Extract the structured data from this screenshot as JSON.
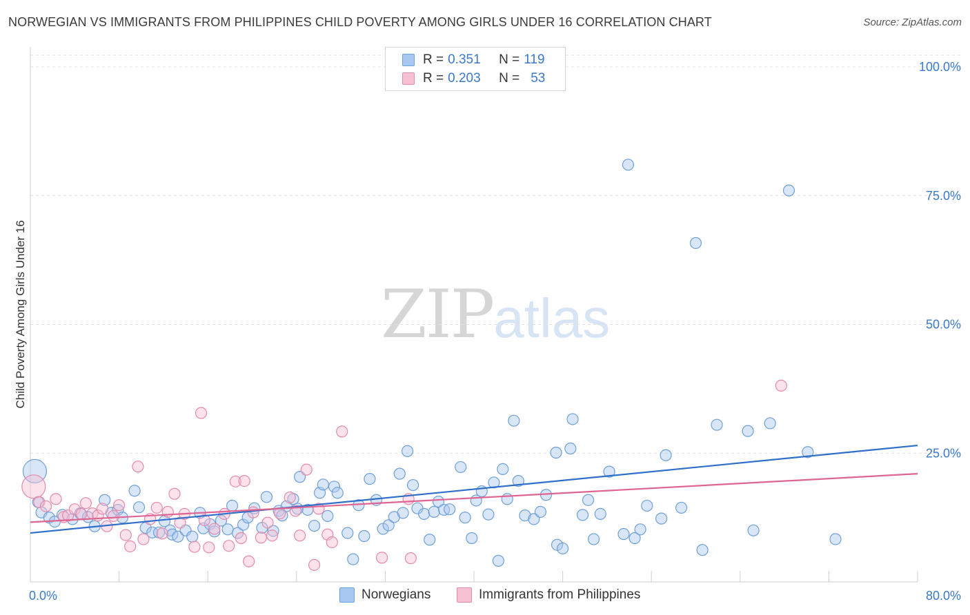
{
  "title": "NORWEGIAN VS IMMIGRANTS FROM PHILIPPINES CHILD POVERTY AMONG GIRLS UNDER 16 CORRELATION CHART",
  "source": "Source: ZipAtlas.com",
  "watermark": {
    "zip": "ZIP",
    "atlas": "atlas"
  },
  "legend_stats": [
    {
      "r_label": "R =",
      "r_value": "0.351",
      "n_label": "N =",
      "n_value": "119",
      "color": "#a9c8f0",
      "border": "#6f9fd8"
    },
    {
      "r_label": "R =",
      "r_value": "0.203",
      "n_label": "N =",
      "n_value": "53",
      "color": "#f7bfd2",
      "border": "#e58aaa"
    }
  ],
  "chart_data": {
    "type": "scatter",
    "title": "NORWEGIAN VS IMMIGRANTS FROM PHILIPPINES CHILD POVERTY AMONG GIRLS UNDER 16 CORRELATION CHART",
    "xlabel": "",
    "ylabel": "Child Poverty Among Girls Under 16",
    "xlim": [
      0,
      80
    ],
    "ylim": [
      0,
      100
    ],
    "x_tick_labels": [
      "0.0%",
      "80.0%"
    ],
    "y_ticks": [
      25,
      50,
      75,
      100
    ],
    "y_tick_labels": [
      "25.0%",
      "50.0%",
      "75.0%",
      "100.0%"
    ],
    "grid": "horizontal dashed",
    "legend_position": "bottom-center",
    "series": [
      {
        "name": "Norwegians",
        "color": "#6f9fd8",
        "fill": "#a9c8f0",
        "trend": {
          "x": [
            0,
            80
          ],
          "y": [
            9.5,
            26.5
          ],
          "color": "#2d6fcb"
        },
        "points": [
          [
            0.4,
            21.5
          ],
          [
            0.7,
            15.5
          ],
          [
            1.0,
            13.5
          ],
          [
            1.7,
            12.5
          ],
          [
            2.2,
            11.7
          ],
          [
            2.9,
            13
          ],
          [
            3.8,
            12.2
          ],
          [
            4.5,
            13.3
          ],
          [
            5.2,
            12.6
          ],
          [
            5.8,
            10.8
          ],
          [
            6.7,
            15.9
          ],
          [
            7.3,
            13.4
          ],
          [
            7.9,
            14
          ],
          [
            8.3,
            12.5
          ],
          [
            9.4,
            17.7
          ],
          [
            9.8,
            14.5
          ],
          [
            10.4,
            10.5
          ],
          [
            11.0,
            9.6
          ],
          [
            11.6,
            9.6
          ],
          [
            12.1,
            11.8
          ],
          [
            12.6,
            10
          ],
          [
            12.8,
            9.2
          ],
          [
            13.3,
            8.8
          ],
          [
            14.0,
            10
          ],
          [
            14.6,
            8.8
          ],
          [
            15.3,
            13.4
          ],
          [
            15.6,
            10.4
          ],
          [
            16.2,
            11.2
          ],
          [
            16.6,
            9.8
          ],
          [
            17.2,
            11.9
          ],
          [
            17.8,
            10.2
          ],
          [
            18.2,
            14.8
          ],
          [
            18.7,
            9.5
          ],
          [
            19.2,
            11.1
          ],
          [
            19.6,
            12.5
          ],
          [
            20.2,
            14.3
          ],
          [
            20.9,
            10.5
          ],
          [
            21.3,
            16.5
          ],
          [
            21.9,
            9.9
          ],
          [
            22.4,
            13.8
          ],
          [
            22.7,
            12.9
          ],
          [
            23.1,
            14.7
          ],
          [
            23.7,
            16.1
          ],
          [
            24.1,
            14.2
          ],
          [
            24.3,
            20.4
          ],
          [
            25.0,
            14
          ],
          [
            25.6,
            10.9
          ],
          [
            26.1,
            17.3
          ],
          [
            26.4,
            18.9
          ],
          [
            26.8,
            12.8
          ],
          [
            27.4,
            18.5
          ],
          [
            27.7,
            17.3
          ],
          [
            28.6,
            9.5
          ],
          [
            29.1,
            4.4
          ],
          [
            29.6,
            14.9
          ],
          [
            30.1,
            8.9
          ],
          [
            30.6,
            20
          ],
          [
            31.2,
            15.9
          ],
          [
            31.8,
            10.3
          ],
          [
            32.3,
            11
          ],
          [
            32.8,
            12.6
          ],
          [
            33.3,
            21
          ],
          [
            33.6,
            13.4
          ],
          [
            34.0,
            25.4
          ],
          [
            34.5,
            18.8
          ],
          [
            34.9,
            14.3
          ],
          [
            35.5,
            13.2
          ],
          [
            36.0,
            8.2
          ],
          [
            36.4,
            13.6
          ],
          [
            36.8,
            15.6
          ],
          [
            37.3,
            14
          ],
          [
            37.8,
            14.1
          ],
          [
            38.8,
            22.3
          ],
          [
            39.2,
            12.5
          ],
          [
            39.8,
            8.5
          ],
          [
            40.2,
            15.8
          ],
          [
            40.7,
            17.6
          ],
          [
            41.3,
            13.1
          ],
          [
            41.8,
            19.3
          ],
          [
            42.2,
            4.1
          ],
          [
            42.6,
            21.9
          ],
          [
            43.0,
            16.1
          ],
          [
            43.6,
            31.3
          ],
          [
            44.0,
            19.6
          ],
          [
            44.6,
            12.9
          ],
          [
            45.4,
            12.2
          ],
          [
            46.0,
            13.6
          ],
          [
            46.5,
            16.9
          ],
          [
            47.4,
            25.1
          ],
          [
            47.5,
            7.2
          ],
          [
            48.0,
            6.5
          ],
          [
            48.7,
            25.9
          ],
          [
            48.9,
            31.6
          ],
          [
            49.8,
            13
          ],
          [
            50.3,
            15.9
          ],
          [
            50.8,
            8.3
          ],
          [
            51.4,
            13.2
          ],
          [
            52.2,
            21.4
          ],
          [
            53.5,
            9.3
          ],
          [
            53.9,
            81
          ],
          [
            54.5,
            8.5
          ],
          [
            55.0,
            10.2
          ],
          [
            55.6,
            14.8
          ],
          [
            56.9,
            12.3
          ],
          [
            57.3,
            24.6
          ],
          [
            58.7,
            14.4
          ],
          [
            60.0,
            65.8
          ],
          [
            60.6,
            6.2
          ],
          [
            61.9,
            30.5
          ],
          [
            64.7,
            29.3
          ],
          [
            65.2,
            10
          ],
          [
            66.7,
            30.8
          ],
          [
            68.4,
            76
          ],
          [
            70.1,
            25.2
          ],
          [
            72.6,
            8.3
          ]
        ]
      },
      {
        "name": "Immigrants from Philippines",
        "color": "#e58aaa",
        "fill": "#f7bfd2",
        "trend": {
          "x": [
            0,
            80
          ],
          "y": [
            11.6,
            21
          ],
          "color": "#e06492"
        },
        "points": [
          [
            0.3,
            18.5
          ],
          [
            0.8,
            15.5
          ],
          [
            1.4,
            14.7
          ],
          [
            2.3,
            16.1
          ],
          [
            3.0,
            12.6
          ],
          [
            3.4,
            12.9
          ],
          [
            4.0,
            14.1
          ],
          [
            4.6,
            13.2
          ],
          [
            5.0,
            15.3
          ],
          [
            5.6,
            13.3
          ],
          [
            6.1,
            12.9
          ],
          [
            6.5,
            14.2
          ],
          [
            6.9,
            10.8
          ],
          [
            7.5,
            12.8
          ],
          [
            8.0,
            14.9
          ],
          [
            8.6,
            9.1
          ],
          [
            9.0,
            6.9
          ],
          [
            9.7,
            22.4
          ],
          [
            10.2,
            8.3
          ],
          [
            10.8,
            12.2
          ],
          [
            11.4,
            14.4
          ],
          [
            11.9,
            9.4
          ],
          [
            12.4,
            13.6
          ],
          [
            13.0,
            17.1
          ],
          [
            13.5,
            11.5
          ],
          [
            13.9,
            13.2
          ],
          [
            14.8,
            6.8
          ],
          [
            15.4,
            32.8
          ],
          [
            15.7,
            12
          ],
          [
            16.1,
            6.7
          ],
          [
            16.6,
            10.3
          ],
          [
            17.5,
            13.2
          ],
          [
            17.9,
            7
          ],
          [
            18.5,
            19.5
          ],
          [
            19.0,
            8.5
          ],
          [
            19.3,
            19.6
          ],
          [
            19.7,
            4
          ],
          [
            20.1,
            13.5
          ],
          [
            20.8,
            8.6
          ],
          [
            21.4,
            11.5
          ],
          [
            21.8,
            9
          ],
          [
            22.5,
            13.3
          ],
          [
            23.4,
            16.4
          ],
          [
            23.9,
            13.8
          ],
          [
            24.3,
            9
          ],
          [
            24.9,
            21.8
          ],
          [
            25.6,
            3.3
          ],
          [
            26.0,
            14.2
          ],
          [
            26.8,
            9.2
          ],
          [
            27.2,
            7.7
          ],
          [
            28.1,
            29.2
          ],
          [
            31.7,
            4.7
          ],
          [
            34.1,
            16.1
          ],
          [
            34.3,
            4.6
          ],
          [
            67.7,
            38.1
          ]
        ]
      }
    ]
  },
  "bottom_legend": [
    {
      "label": "Norwegians",
      "color": "#a9c8f0",
      "border": "#6f9fd8"
    },
    {
      "label": "Immigrants from Philippines",
      "color": "#f7bfd2",
      "border": "#e58aaa"
    }
  ]
}
